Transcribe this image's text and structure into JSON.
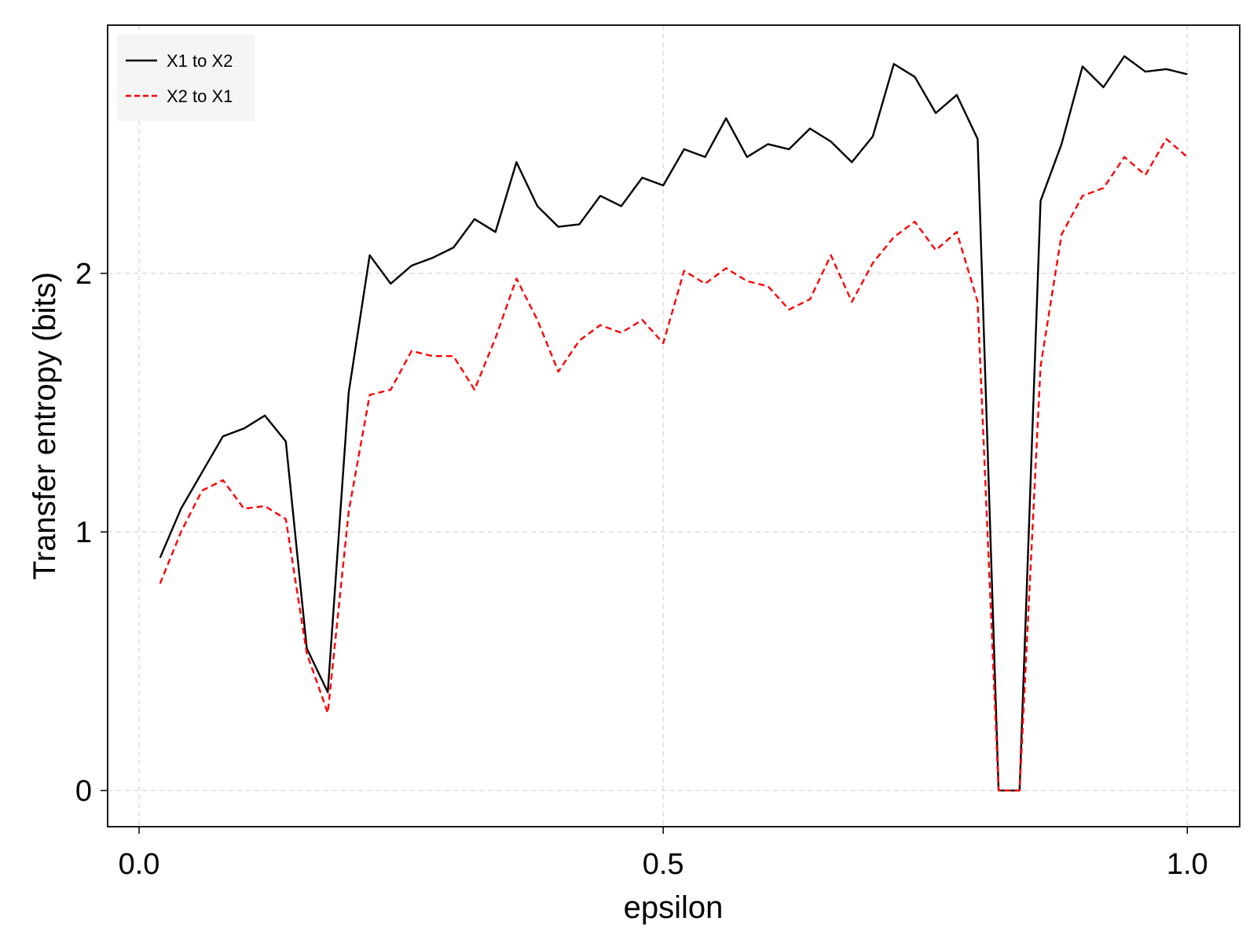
{
  "chart_data": {
    "type": "line",
    "xlabel": "epsilon",
    "ylabel": "Transfer entropy (bits)",
    "xlim": [
      -0.03,
      1.05
    ],
    "ylim": [
      -0.14,
      2.96
    ],
    "x_ticks": [
      0.0,
      0.5,
      1.0
    ],
    "x_tick_labels": [
      "0.0",
      "0.5",
      "1.0"
    ],
    "y_ticks": [
      0,
      1,
      2
    ],
    "y_tick_labels": [
      "0",
      "1",
      "2"
    ],
    "grid": true,
    "legend_position": "top-left",
    "x": [
      0.02,
      0.04,
      0.06,
      0.08,
      0.1,
      0.12,
      0.14,
      0.16,
      0.18,
      0.2,
      0.22,
      0.24,
      0.26,
      0.28,
      0.3,
      0.32,
      0.34,
      0.36,
      0.38,
      0.4,
      0.42,
      0.44,
      0.46,
      0.48,
      0.5,
      0.52,
      0.54,
      0.56,
      0.58,
      0.6,
      0.62,
      0.64,
      0.66,
      0.68,
      0.7,
      0.72,
      0.74,
      0.76,
      0.78,
      0.8,
      0.82,
      0.84,
      0.86,
      0.88,
      0.9,
      0.92,
      0.94,
      0.96,
      0.98,
      1.0
    ],
    "series": [
      {
        "name": "X1 to X2",
        "color": "#000000",
        "style": "solid",
        "values": [
          0.9,
          1.09,
          1.23,
          1.37,
          1.4,
          1.45,
          1.35,
          0.55,
          0.38,
          1.54,
          2.07,
          1.96,
          2.03,
          2.06,
          2.1,
          2.21,
          2.16,
          2.43,
          2.26,
          2.18,
          2.19,
          2.3,
          2.26,
          2.37,
          2.34,
          2.48,
          2.45,
          2.6,
          2.45,
          2.5,
          2.48,
          2.56,
          2.51,
          2.43,
          2.53,
          2.81,
          2.76,
          2.62,
          2.69,
          2.52,
          0.0,
          0.0,
          2.28,
          2.5,
          2.8,
          2.72,
          2.84,
          2.78,
          2.79,
          2.77
        ]
      },
      {
        "name": "X2 to X1",
        "color": "#ff0000",
        "style": "dashed",
        "values": [
          0.8,
          1.0,
          1.16,
          1.2,
          1.09,
          1.1,
          1.05,
          0.53,
          0.3,
          1.08,
          1.53,
          1.55,
          1.7,
          1.68,
          1.68,
          1.55,
          1.75,
          1.98,
          1.82,
          1.62,
          1.74,
          1.8,
          1.77,
          1.82,
          1.73,
          2.01,
          1.96,
          2.02,
          1.97,
          1.95,
          1.86,
          1.9,
          2.07,
          1.89,
          2.04,
          2.14,
          2.2,
          2.09,
          2.16,
          1.89,
          0.0,
          0.0,
          1.64,
          2.15,
          2.3,
          2.33,
          2.45,
          2.38,
          2.52,
          2.45
        ]
      }
    ]
  }
}
